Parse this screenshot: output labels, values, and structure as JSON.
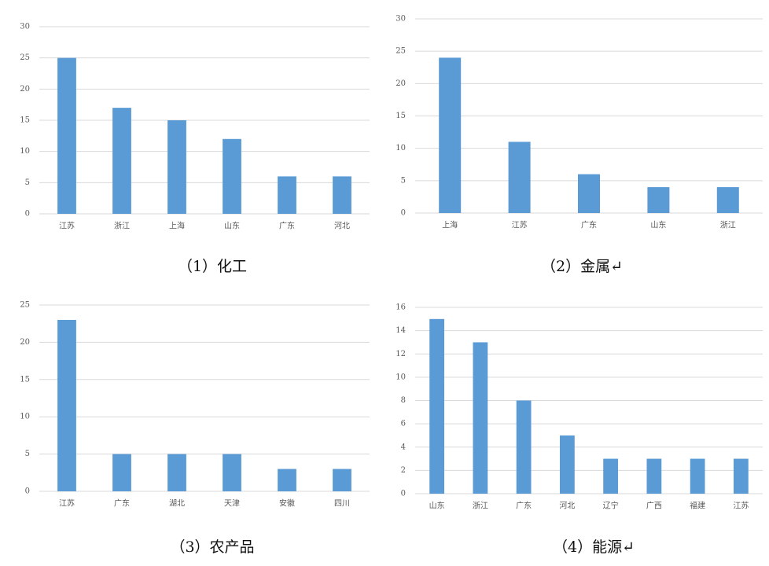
{
  "chart_data": [
    {
      "type": "bar",
      "title": "（1）化工",
      "categories": [
        "江苏",
        "浙江",
        "上海",
        "山东",
        "广东",
        "河北"
      ],
      "values": [
        25,
        17,
        15,
        12,
        6,
        6
      ],
      "color": "#5b9bd5",
      "ylim": [
        0,
        30
      ],
      "yticks": [
        0,
        5,
        10,
        15,
        20,
        25,
        30
      ],
      "grid": true
    },
    {
      "type": "bar",
      "title": "（2）金属↵",
      "categories": [
        "上海",
        "江苏",
        "广东",
        "山东",
        "浙江"
      ],
      "values": [
        24,
        11,
        6,
        4,
        4
      ],
      "color": "#5b9bd5",
      "ylim": [
        0,
        30
      ],
      "yticks": [
        0,
        5,
        10,
        15,
        20,
        25,
        30
      ],
      "grid": true
    },
    {
      "type": "bar",
      "title": "（3）农产品",
      "categories": [
        "江苏",
        "广东",
        "湖北",
        "天津",
        "安徽",
        "四川"
      ],
      "values": [
        23,
        5,
        5,
        5,
        3,
        3
      ],
      "color": "#5b9bd5",
      "ylim": [
        0,
        25
      ],
      "yticks": [
        0,
        5,
        10,
        15,
        20,
        25
      ],
      "grid": true
    },
    {
      "type": "bar",
      "title": "（4）能源↵",
      "categories": [
        "山东",
        "浙江",
        "广东",
        "河北",
        "辽宁",
        "广西",
        "福建",
        "江苏"
      ],
      "values": [
        15,
        13,
        8,
        5,
        3,
        3,
        3,
        3
      ],
      "color": "#5b9bd5",
      "ylim": [
        0,
        16
      ],
      "yticks": [
        0,
        2,
        4,
        6,
        8,
        10,
        12,
        14,
        16
      ],
      "grid": true
    }
  ]
}
